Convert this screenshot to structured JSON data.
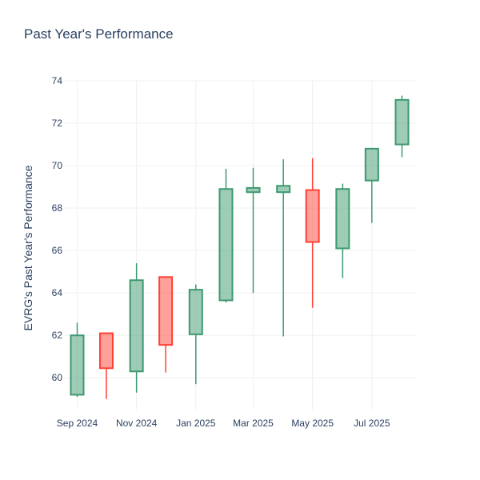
{
  "chart_data": {
    "type": "candlestick",
    "title": "Past Year's Performance",
    "ylabel": "EVRG's Past Year's Performance",
    "xlabel": "",
    "ylim": [
      58.5,
      74
    ],
    "y_ticks": [
      60,
      62,
      64,
      66,
      68,
      70,
      72,
      74
    ],
    "x_ticks": [
      {
        "date": "2024-09-01",
        "label": "Sep 2024"
      },
      {
        "date": "2024-11-01",
        "label": "Nov 2024"
      },
      {
        "date": "2025-01-01",
        "label": "Jan 2025"
      },
      {
        "date": "2025-03-01",
        "label": "Mar 2025"
      },
      {
        "date": "2025-05-01",
        "label": "May 2025"
      },
      {
        "date": "2025-07-01",
        "label": "Jul 2025"
      }
    ],
    "increasing_color": "#3d9970",
    "decreasing_color": "#ff4136",
    "grid": true,
    "candles": [
      {
        "date": "2024-09-01",
        "open": 59.2,
        "high": 62.6,
        "low": 59.1,
        "close": 62.0
      },
      {
        "date": "2024-10-01",
        "open": 62.1,
        "high": 62.1,
        "low": 59.0,
        "close": 60.45
      },
      {
        "date": "2024-11-01",
        "open": 60.3,
        "high": 65.4,
        "low": 59.3,
        "close": 64.6
      },
      {
        "date": "2024-12-01",
        "open": 64.75,
        "high": 64.75,
        "low": 60.25,
        "close": 61.55
      },
      {
        "date": "2025-01-01",
        "open": 62.05,
        "high": 64.4,
        "low": 59.7,
        "close": 64.15
      },
      {
        "date": "2025-02-01",
        "open": 63.65,
        "high": 69.85,
        "low": 63.55,
        "close": 68.9
      },
      {
        "date": "2025-03-01",
        "open": 68.75,
        "high": 69.9,
        "low": 64.0,
        "close": 68.95
      },
      {
        "date": "2025-04-01",
        "open": 68.75,
        "high": 70.3,
        "low": 61.95,
        "close": 69.05
      },
      {
        "date": "2025-05-01",
        "open": 68.85,
        "high": 70.35,
        "low": 63.3,
        "close": 66.4
      },
      {
        "date": "2025-06-01",
        "open": 66.1,
        "high": 69.15,
        "low": 64.7,
        "close": 68.9
      },
      {
        "date": "2025-07-01",
        "open": 69.3,
        "high": 70.8,
        "low": 67.3,
        "close": 70.8
      },
      {
        "date": "2025-08-01",
        "open": 71.0,
        "high": 73.3,
        "low": 70.4,
        "close": 73.1
      }
    ]
  }
}
